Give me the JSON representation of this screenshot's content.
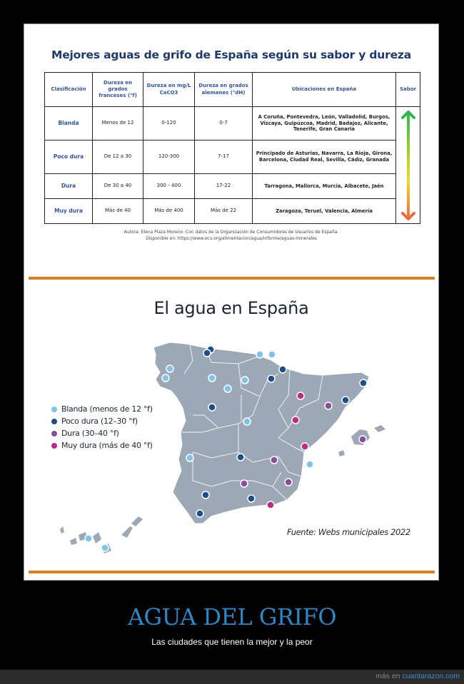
{
  "table": {
    "title": "Mejores aguas de grifo de España según su sabor y dureza",
    "headers": [
      "Clasificación",
      "Dureza en grados franceses (°f)",
      "Dureza en mg/L CaCO3",
      "Dureza en grados alemanes (°dH)",
      "Ubicaciones en España",
      "Sabor"
    ],
    "rows": [
      {
        "clasificacion": "Blanda",
        "franceses": "Menos de 12",
        "mgl": "0-120",
        "alemanes": "0-7",
        "ubicaciones": "A Coruña, Pontevedra, León, Valladolid, Burgos, Vizcaya, Guipúzcoa, Madrid, Badajoz, Alicante, Tenerife, Gran Canaria"
      },
      {
        "clasificacion": "Poco dura",
        "franceses": "De 12 a 30",
        "mgl": "120-300",
        "alemanes": "7-17",
        "ubicaciones": "Principado de Asturias, Navarra, La Rioja, Girona, Barcelona, Ciudad Real, Sevilla, Cádiz, Granada"
      },
      {
        "clasificacion": "Dura",
        "franceses": "De 30 a 40",
        "mgl": "300 - 400",
        "alemanes": "17-22",
        "ubicaciones": "Tarragona, Mallorca, Murcia, Albacete, Jaén"
      },
      {
        "clasificacion": "Muy dura",
        "franceses": "Más de 40",
        "mgl": "Más de 400",
        "alemanes": "Más de 22",
        "ubicaciones": "Zaragoza, Teruel, Valencia, Almería"
      }
    ],
    "credits_line1": "Autora: Elena Plaza Moreno. Con datos de la Organización de Consumidores de Usuarios de España.",
    "credits_line2": "Disponible en: https://www.ocu.org/alimentacion/agua/informe/aguas-minerales"
  },
  "map": {
    "title": "El agua en España",
    "legend": [
      {
        "label": "Blanda (menos de 12 °f)",
        "color": "#7ec4ea"
      },
      {
        "label": "Poco dura (12–30 °f)",
        "color": "#1b4e8c"
      },
      {
        "label": "Dura (30–40 °f)",
        "color": "#8a4d9e"
      },
      {
        "label": "Muy dura (más de 40 °f)",
        "color": "#c2287f"
      }
    ],
    "source": "Fuente: Webs municipales 2022"
  },
  "caption": {
    "title": "AGUA DEL GRIFO",
    "subtitle": "Las ciudades que tienen la mejor y la peor"
  },
  "footer": {
    "prefix": "más en",
    "site": "cuantarazon.com"
  },
  "colors": {
    "accent_orange": "#e07c22",
    "title_blue": "#1d3a6e",
    "caption_blue": "#2a88c8",
    "region_grey": "#9ca8b6"
  }
}
